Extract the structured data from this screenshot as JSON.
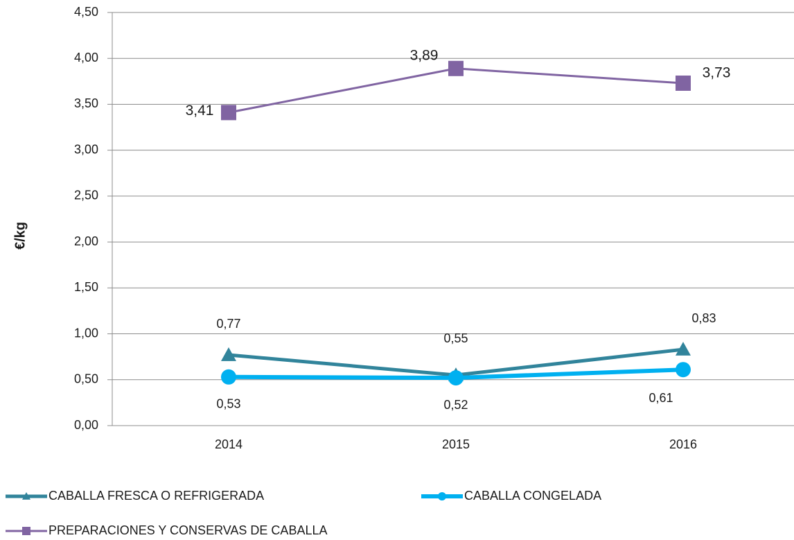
{
  "chart_data": {
    "type": "line",
    "y_label": "€/kg",
    "categories": [
      "2014",
      "2015",
      "2016"
    ],
    "series": [
      {
        "name": "CABALLA FRESCA O REFRIGERADA",
        "color": "#31849b",
        "marker": "triangle",
        "values": [
          0.77,
          0.55,
          0.83
        ],
        "value_labels": [
          "0,77",
          "0,55",
          "0,83"
        ]
      },
      {
        "name": "CABALLA CONGELADA",
        "color": "#00b0f0",
        "marker": "circle",
        "values": [
          0.53,
          0.52,
          0.61
        ],
        "value_labels": [
          "0,53",
          "0,52",
          "0,61"
        ]
      },
      {
        "name": "PREPARACIONES Y CONSERVAS DE CABALLA",
        "color": "#8064a2",
        "marker": "square",
        "values": [
          3.41,
          3.89,
          3.73
        ],
        "value_labels": [
          "3,41",
          "3,89",
          "3,73"
        ]
      }
    ],
    "ylim": [
      0,
      4.5
    ],
    "yticks": [
      {
        "value": 0,
        "label": "0,00"
      },
      {
        "value": 0.5,
        "label": "0,50"
      },
      {
        "value": 1,
        "label": "1,00"
      },
      {
        "value": 1.5,
        "label": "1,50"
      },
      {
        "value": 2,
        "label": "2,00"
      },
      {
        "value": 2.5,
        "label": "2,50"
      },
      {
        "value": 3,
        "label": "3,00"
      },
      {
        "value": 3.5,
        "label": "3,50"
      },
      {
        "value": 4,
        "label": "4,00"
      },
      {
        "value": 4.5,
        "label": "4,50"
      }
    ],
    "grid": true
  }
}
